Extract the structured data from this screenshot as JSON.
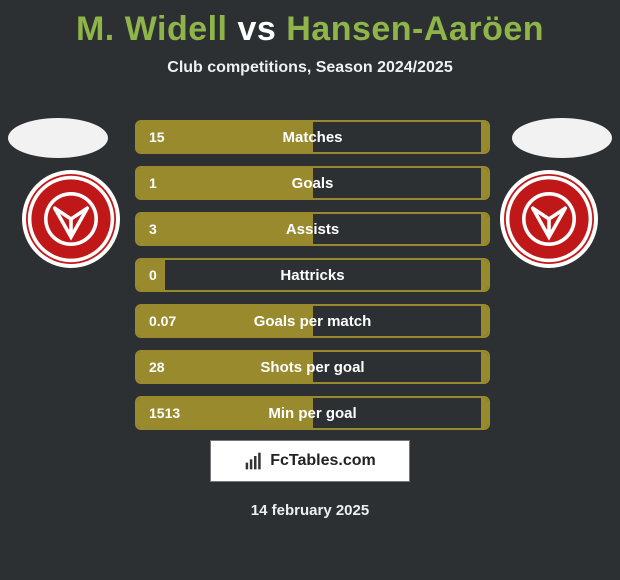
{
  "title_left": "M. Widell",
  "title_mid": " vs ",
  "title_right": "Hansen-Aaröen",
  "title_left_color": "#8fb44a",
  "title_mid_color": "#ffffff",
  "title_right_color": "#8fb44a",
  "subtitle": "Club competitions, Season 2024/2025",
  "background_color": "#2d3033",
  "bar_border_color": "#9a8a2e",
  "bar_fill_color": "#9a8a2e",
  "text_color": "#ffffff",
  "rows": [
    {
      "label": "Matches",
      "left_value": "15",
      "right_value": "",
      "left_fill_pct": 50,
      "right_fill_pct": 2
    },
    {
      "label": "Goals",
      "left_value": "1",
      "right_value": "",
      "left_fill_pct": 50,
      "right_fill_pct": 2
    },
    {
      "label": "Assists",
      "left_value": "3",
      "right_value": "",
      "left_fill_pct": 50,
      "right_fill_pct": 2
    },
    {
      "label": "Hattricks",
      "left_value": "0",
      "right_value": "",
      "left_fill_pct": 8,
      "right_fill_pct": 2
    },
    {
      "label": "Goals per match",
      "left_value": "0.07",
      "right_value": "",
      "left_fill_pct": 50,
      "right_fill_pct": 2
    },
    {
      "label": "Shots per goal",
      "left_value": "28",
      "right_value": "",
      "left_fill_pct": 50,
      "right_fill_pct": 2
    },
    {
      "label": "Min per goal",
      "left_value": "1513",
      "right_value": "",
      "left_fill_pct": 50,
      "right_fill_pct": 2
    }
  ],
  "branding_text": "FcTables.com",
  "date_text": "14 february 2025",
  "club_logo": {
    "primary_color": "#c01818",
    "secondary_color": "#ffffff"
  }
}
